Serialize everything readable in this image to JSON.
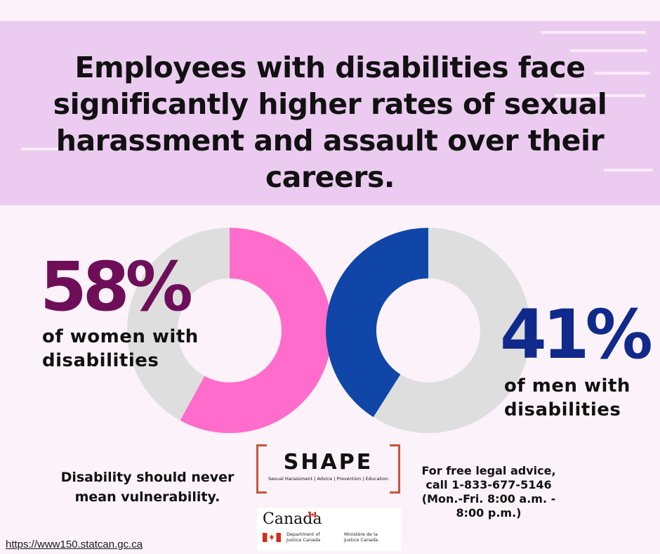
{
  "headline": "Employees with disabilities face significantly higher rates of sexual harassment and assault over their careers.",
  "women": {
    "percent_label": "58%",
    "percent_value": 58,
    "caption": "of women with disabilities",
    "color": "#ff6ccb",
    "track_color": "#dedede",
    "text_color": "#6e0e58"
  },
  "men": {
    "percent_label": "41%",
    "percent_value": 41,
    "caption": "of men with disabilities",
    "color": "#0f46a8",
    "track_color": "#dedede",
    "text_color": "#0f2a8a"
  },
  "tagline": "Disability should never mean vulnerability.",
  "shape_logo": {
    "name": "SHAPE",
    "subtitle": "Sexual Harassment | Advice | Prevention | Education"
  },
  "legal_advice": "For free legal advice, call 1-833-677-5146 (Mon.-Fri. 8:00 a.m. - 8:00 p.m.)",
  "canada_logo": {
    "wordmark": "Canada",
    "dept_en": "Department of Justice Canada",
    "dept_fr": "Ministère de la Justice Canada"
  },
  "source_url": "https://www150.statcan.gc.ca",
  "colors": {
    "background": "#fbf2fa",
    "banner": "#eccbf1",
    "shape_bracket": "#c8553d"
  }
}
